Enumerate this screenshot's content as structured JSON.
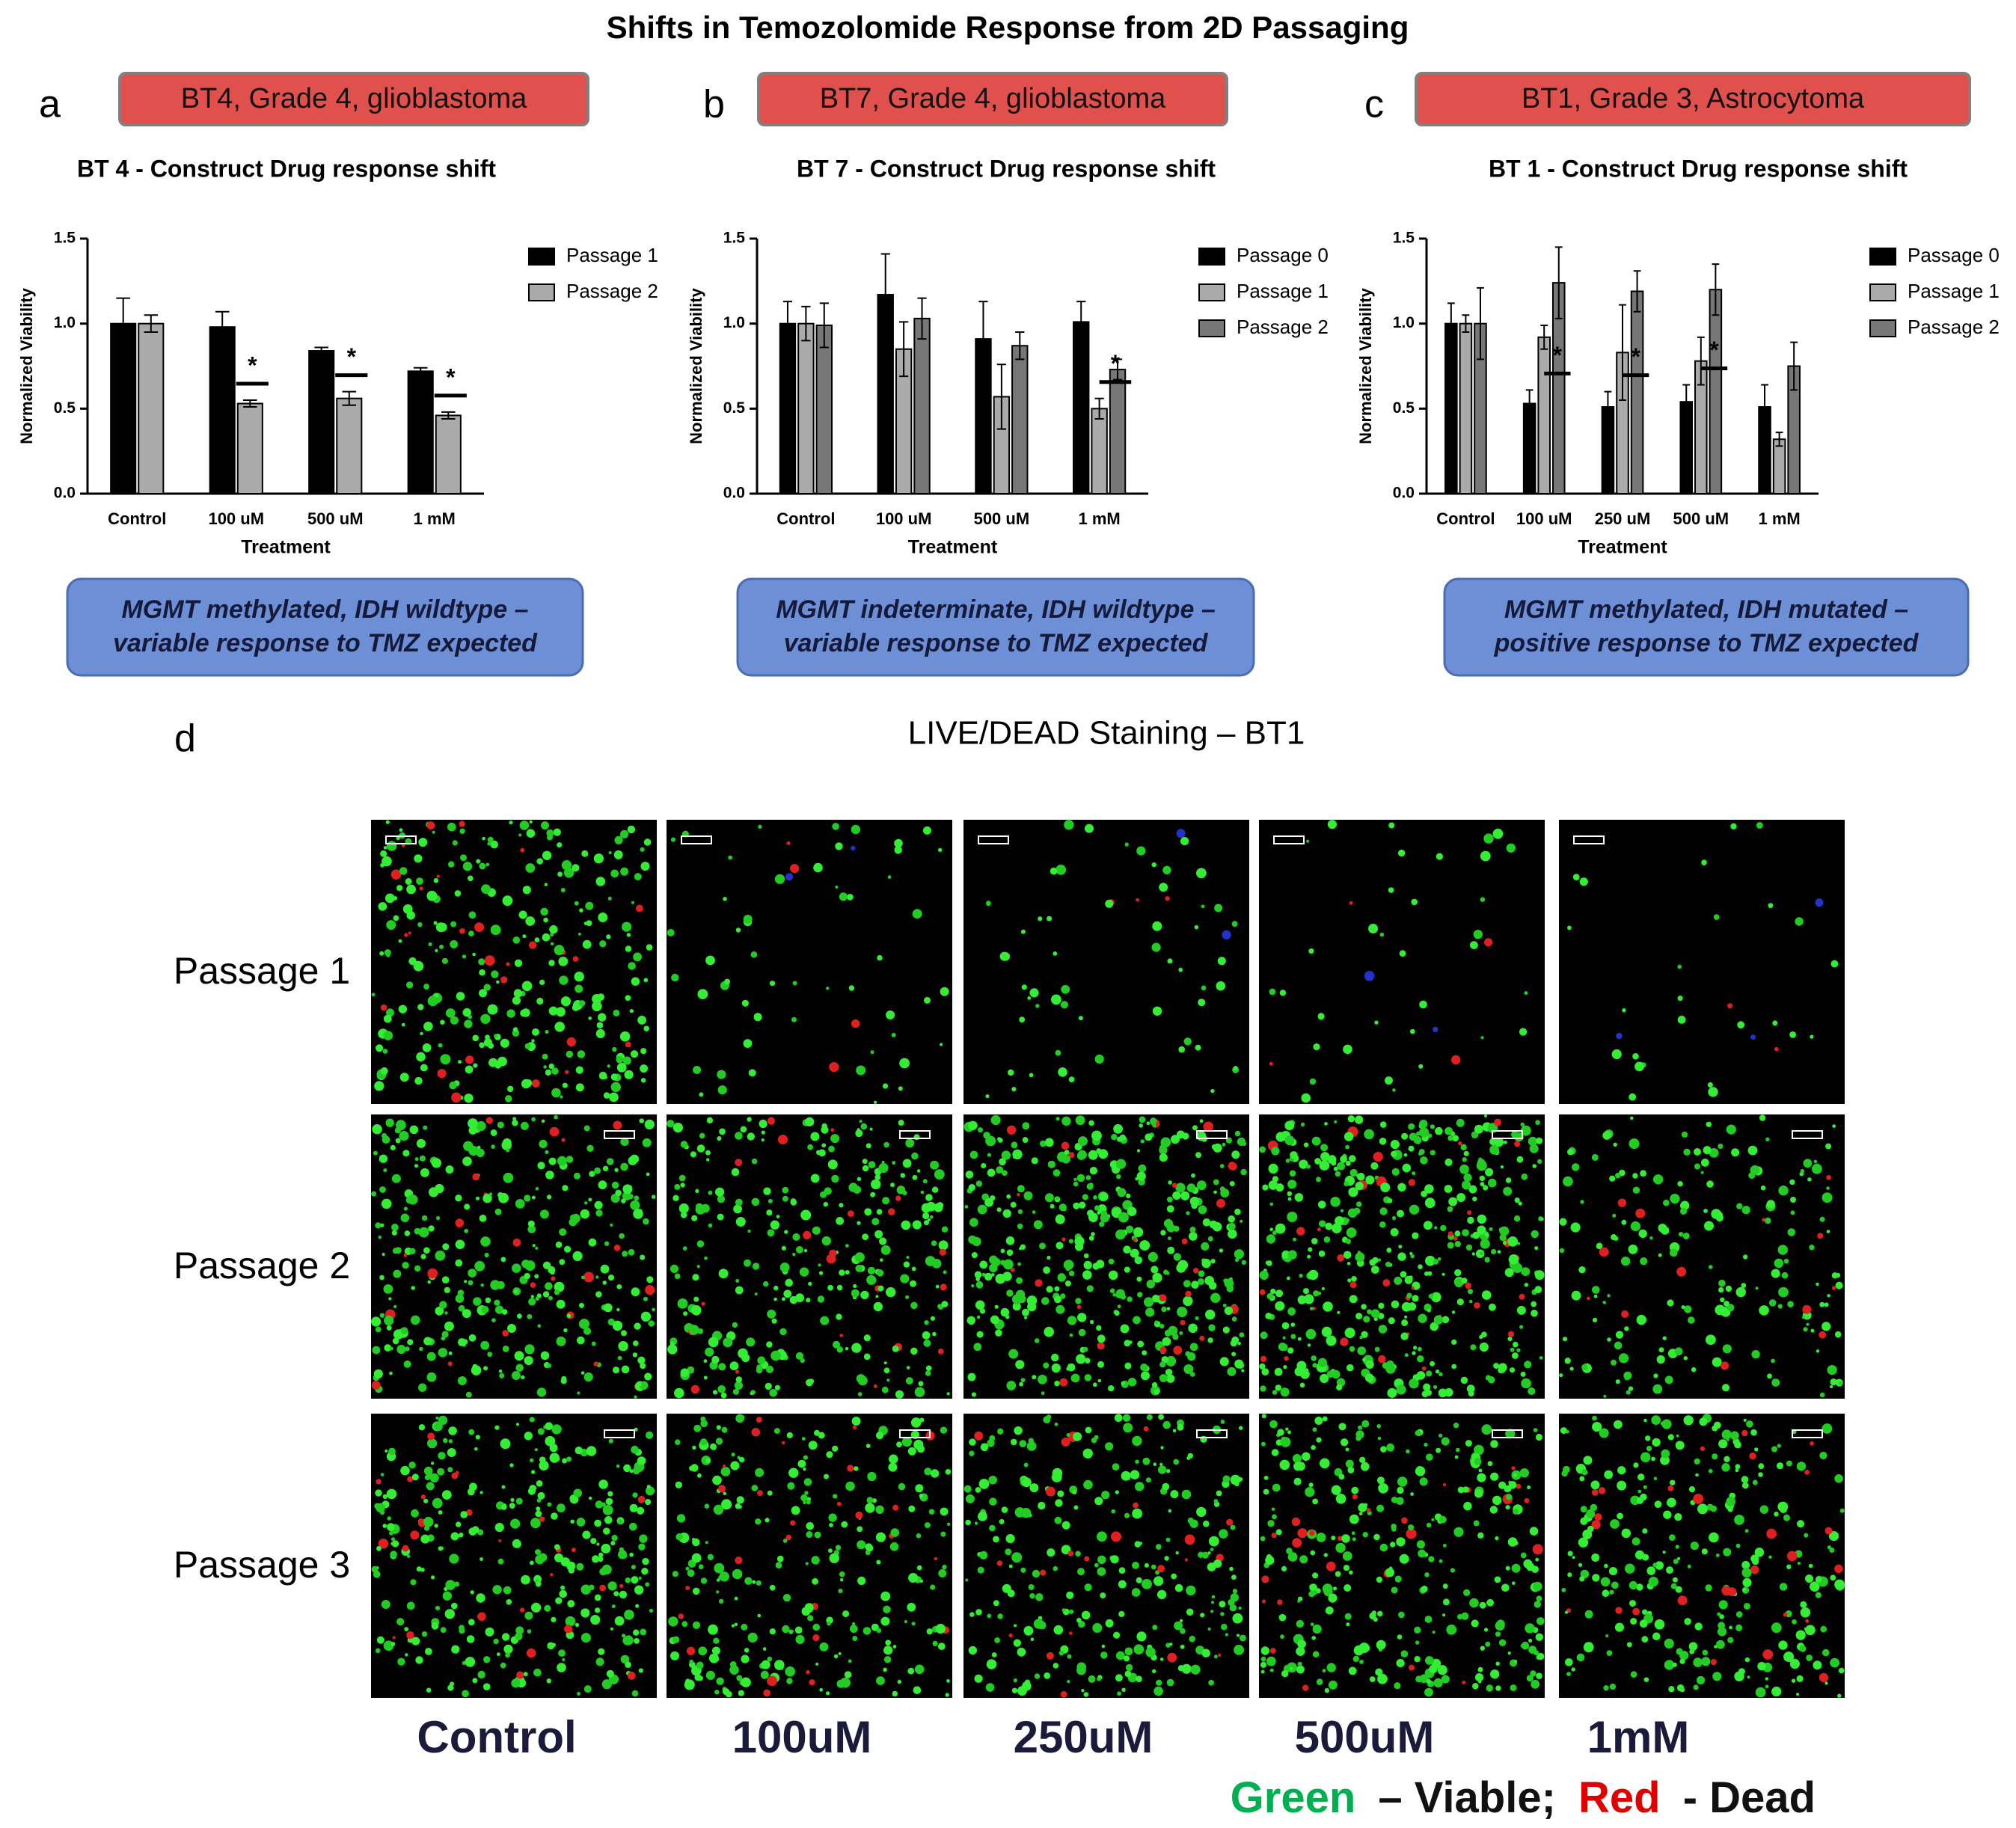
{
  "title": "Shifts in Temozolomide Response from 2D Passaging",
  "chart_data": [
    {
      "type": "bar",
      "panel_label": "a",
      "header": "BT4, Grade 4, glioblastoma",
      "title": "BT 4 - Construct Drug response shift",
      "ylabel": "Normalized Viability",
      "xlabel": "Treatment",
      "categories": [
        "Control",
        "100 uM",
        "500 uM",
        "1 mM"
      ],
      "series": [
        {
          "name": "Passage 1",
          "color": "#000000",
          "values": [
            1.0,
            0.98,
            0.84,
            0.72
          ],
          "errors": [
            0.15,
            0.09,
            0.02,
            0.02
          ]
        },
        {
          "name": "Passage 2",
          "color": "#aaaaaa",
          "values": [
            1.0,
            0.53,
            0.56,
            0.46
          ],
          "errors": [
            0.05,
            0.02,
            0.04,
            0.02
          ]
        }
      ],
      "ylim": [
        0,
        1.5
      ],
      "yticks": [
        {
          "value": 0,
          "label": "0.0"
        },
        0.5,
        {
          "value": 1,
          "label": "1.0"
        },
        1.5
      ],
      "significance": [
        {
          "category": "100 uM",
          "label": "*"
        },
        {
          "category": "500 uM",
          "label": "*"
        },
        {
          "category": "1 mM",
          "label": "*"
        }
      ],
      "note": [
        "MGMT methylated, IDH wildtype –",
        "variable response to TMZ expected"
      ]
    },
    {
      "type": "bar",
      "panel_label": "b",
      "header": "BT7, Grade 4, glioblastoma",
      "title": "BT 7 - Construct Drug response shift",
      "ylabel": "Normalized Viability",
      "xlabel": "Treatment",
      "categories": [
        "Control",
        "100 uM",
        "500 uM",
        "1 mM"
      ],
      "series": [
        {
          "name": "Passage 0",
          "color": "#000000",
          "values": [
            1.0,
            1.17,
            0.91,
            1.01
          ],
          "errors": [
            0.13,
            0.24,
            0.22,
            0.12
          ]
        },
        {
          "name": "Passage 1",
          "color": "#aaaaaa",
          "values": [
            1.0,
            0.85,
            0.57,
            0.5
          ],
          "errors": [
            0.1,
            0.16,
            0.19,
            0.06
          ]
        },
        {
          "name": "Passage 2",
          "color": "#777777",
          "values": [
            0.99,
            1.03,
            0.87,
            0.73
          ],
          "errors": [
            0.13,
            0.12,
            0.08,
            0.06
          ]
        }
      ],
      "ylim": [
        0,
        1.5
      ],
      "yticks": [
        {
          "value": 0,
          "label": "0.0"
        },
        0.5,
        {
          "value": 1,
          "label": "1.0"
        },
        1.5
      ],
      "significance": [
        {
          "category": "1 mM",
          "label": "*"
        }
      ],
      "note": [
        "MGMT indeterminate, IDH wildtype –",
        "variable response to TMZ expected"
      ]
    },
    {
      "type": "bar",
      "panel_label": "c",
      "header": "BT1, Grade 3, Astrocytoma",
      "title": "BT 1 - Construct Drug response shift",
      "ylabel": "Normalized Viability",
      "xlabel": "Treatment",
      "categories": [
        "Control",
        "100 uM",
        "250 uM",
        "500 uM",
        "1 mM"
      ],
      "series": [
        {
          "name": "Passage 0",
          "color": "#000000",
          "values": [
            1.0,
            0.53,
            0.51,
            0.54,
            0.51
          ],
          "errors": [
            0.12,
            0.08,
            0.09,
            0.1,
            0.13
          ]
        },
        {
          "name": "Passage 1",
          "color": "#aaaaaa",
          "values": [
            1.0,
            0.92,
            0.83,
            0.78,
            0.32
          ],
          "errors": [
            0.05,
            0.07,
            0.28,
            0.14,
            0.04
          ]
        },
        {
          "name": "Passage 2",
          "color": "#777777",
          "values": [
            1.0,
            1.24,
            1.19,
            1.2,
            0.75
          ],
          "errors": [
            0.21,
            0.21,
            0.12,
            0.15,
            0.14
          ]
        }
      ],
      "ylim": [
        0,
        1.5
      ],
      "yticks": [
        {
          "value": 0,
          "label": "0.0"
        },
        0.5,
        {
          "value": 1,
          "label": "1.0"
        },
        1.5
      ],
      "significance": [
        {
          "category": "100 uM",
          "label": "*"
        },
        {
          "category": "250 uM",
          "label": "*"
        },
        {
          "category": "500 uM",
          "label": "*"
        }
      ],
      "note": [
        "MGMT methylated, IDH mutated –",
        "positive response to TMZ expected"
      ]
    }
  ],
  "panel_d": {
    "label": "d",
    "title": "LIVE/DEAD Staining – BT1",
    "rows": [
      "Passage 1",
      "Passage 2",
      "Passage 3"
    ],
    "columns": [
      "Control",
      "100uM",
      "250uM",
      "500uM",
      "1mM"
    ],
    "legend": [
      "Green",
      "– Viable;",
      "Red",
      "- Dead"
    ]
  }
}
